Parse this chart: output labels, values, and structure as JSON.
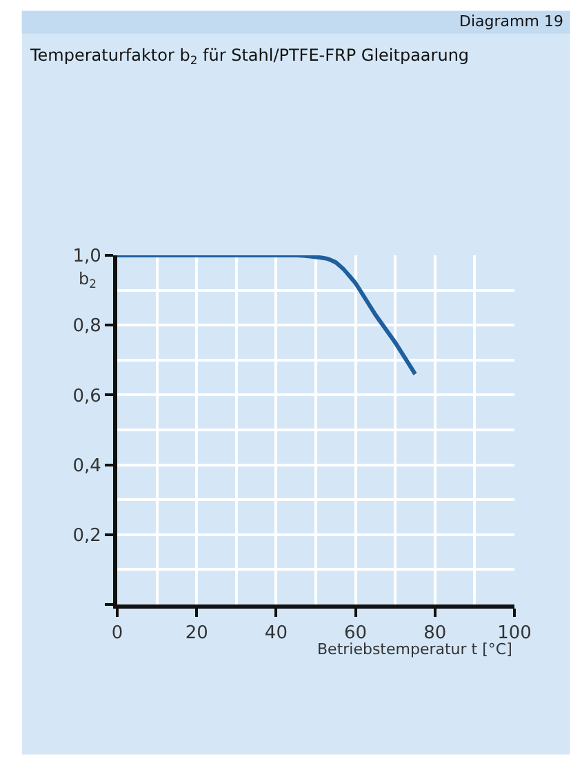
{
  "chart_data": {
    "type": "line",
    "title": "Temperaturfaktor b$_{2}$ für Stahl/PTFE-FRP Gleitpaarung",
    "annotations": [
      "Diagramm 19"
    ],
    "xlabel": "Betriebstemperatur t [°C]",
    "ylabel": "b$_{2}$",
    "x": [
      0,
      10,
      20,
      30,
      40,
      45,
      50,
      53,
      55,
      57,
      60,
      65,
      70,
      75
    ],
    "series": [
      {
        "color": "#1f5f9e",
        "values": [
          1.0,
          1.0,
          1.0,
          1.0,
          1.0,
          1.0,
          0.995,
          0.99,
          0.98,
          0.96,
          0.92,
          0.83,
          0.75,
          0.66
        ]
      }
    ],
    "xlim": [
      0,
      100
    ],
    "ylim": [
      0,
      1.0
    ],
    "xticks": [
      0,
      20,
      40,
      60,
      80,
      100
    ],
    "yticks": [
      {
        "value": 0,
        "label": null
      },
      {
        "value": 0.2,
        "label": "0,2"
      },
      {
        "value": 0.4,
        "label": "0,4"
      },
      {
        "value": 0.6,
        "label": "0,6"
      },
      {
        "value": 0.8,
        "label": "0,8"
      },
      {
        "value": 1.0,
        "label": "1,0"
      }
    ],
    "grid": true,
    "marker": "none",
    "line_style": "solid"
  }
}
